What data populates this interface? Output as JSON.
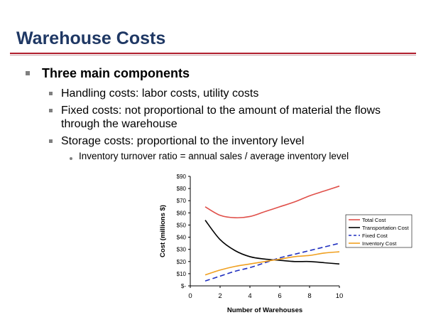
{
  "slide": {
    "title": "Warehouse Costs",
    "bullet_main": "Three main components",
    "sub_bullets": [
      "Handling costs: labor costs, utility costs",
      "Fixed costs: not proportional to the amount of material the flows through the warehouse",
      "Storage costs: proportional to the inventory level"
    ],
    "sub_sub_bullet": "Inventory turnover ratio = annual sales / average inventory level"
  },
  "colors": {
    "title": "#1f3864",
    "rule": "#b01e2d",
    "bullet": "#7f7f7f"
  },
  "chart_data": {
    "type": "line",
    "title": "",
    "xlabel": "Number of Warehouses",
    "ylabel": "Cost (millions $)",
    "xlim": [
      0,
      10
    ],
    "ylim": [
      0,
      90
    ],
    "x_ticks": [
      "0",
      "2",
      "4",
      "6",
      "8",
      "10"
    ],
    "y_ticks": [
      "$-",
      "$10",
      "$20",
      "$30",
      "$40",
      "$50",
      "$60",
      "$70",
      "$80",
      "$90"
    ],
    "x": [
      1,
      2,
      3,
      4,
      5,
      6,
      7,
      8,
      9,
      10
    ],
    "series": [
      {
        "name": "Total Cost",
        "color": "#e0504a",
        "dash": "solid",
        "values": [
          65,
          58,
          56,
          57,
          61,
          65,
          69,
          74,
          78,
          82
        ]
      },
      {
        "name": "Transportation Cost",
        "color": "#000000",
        "dash": "solid",
        "values": [
          54,
          38,
          29,
          24,
          22,
          21,
          20,
          20,
          19,
          18
        ]
      },
      {
        "name": "Fixed Cost",
        "color": "#1f2fbf",
        "dash": "dashed",
        "values": [
          4,
          8,
          12,
          15,
          19,
          23,
          26,
          29,
          32,
          35
        ]
      },
      {
        "name": "Inventory Cost",
        "color": "#f0a020",
        "dash": "solid",
        "values": [
          9,
          13,
          16,
          18,
          20,
          22,
          24,
          25,
          27,
          28
        ]
      }
    ],
    "legend_position": "right",
    "grid": false
  }
}
